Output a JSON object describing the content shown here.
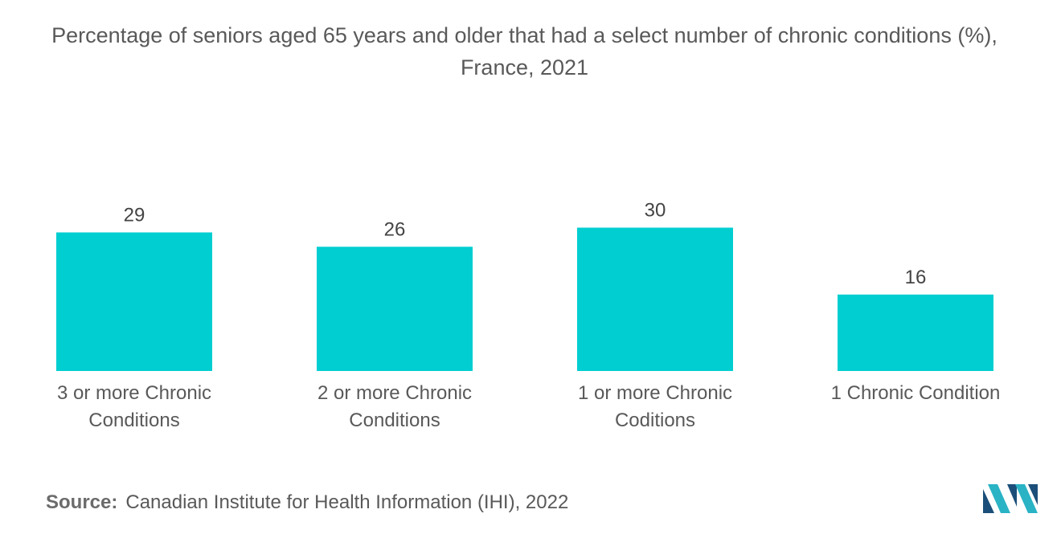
{
  "title": "Percentage of seniors aged 65 years and older that had a select number of chronic conditions (%), France, 2021",
  "source": {
    "label": "Source:",
    "text": "Canadian Institute for Health Information (IHI), 2022"
  },
  "colors": {
    "bar": "#00CED1",
    "logo_dark": "#1b4f7a",
    "logo_light": "#2ab3c5"
  },
  "chart_data": {
    "type": "bar",
    "categories": [
      [
        "3 or more Chronic",
        "Conditions"
      ],
      [
        "2 or more Chronic",
        "Conditions"
      ],
      [
        "1 or more Chronic",
        "Coditions"
      ],
      [
        "1 Chronic Condition"
      ]
    ],
    "values": [
      29,
      26,
      30,
      16
    ],
    "ylim": [
      0,
      30
    ],
    "grid": false,
    "legend": "none"
  }
}
